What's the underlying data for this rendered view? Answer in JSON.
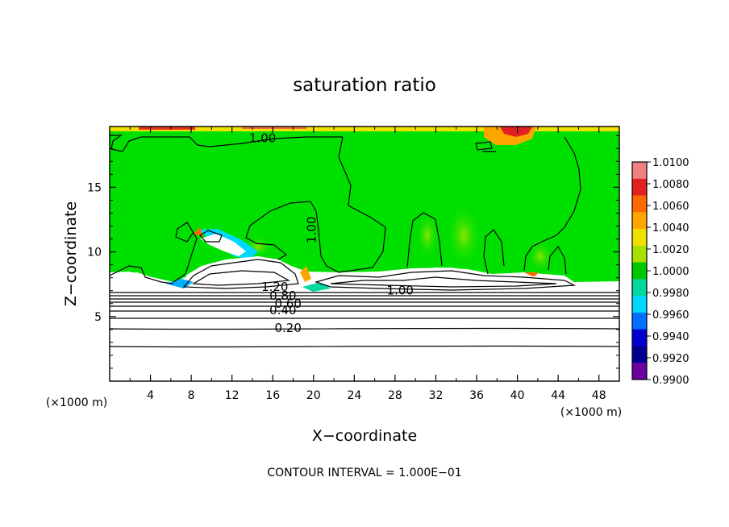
{
  "chart_data": {
    "type": "heatmap",
    "title": "saturation ratio",
    "xlabel": "X−coordinate",
    "ylabel": "Z−coordinate",
    "x_unit_left": "(×1000 m)",
    "x_unit_right": "(×1000 m)",
    "xlim": [
      0,
      50
    ],
    "ylim": [
      0,
      19.7
    ],
    "x_ticks": [
      4,
      8,
      12,
      16,
      20,
      24,
      28,
      32,
      36,
      40,
      44,
      48
    ],
    "y_ticks": [
      5,
      10,
      15
    ],
    "footer": "CONTOUR INTERVAL = 1.000E−01",
    "colorbar": {
      "min": 0.99,
      "max": 1.01,
      "labels": [
        "1.0100",
        "1.0080",
        "1.0060",
        "1.0040",
        "1.0020",
        "1.0000",
        "0.9980",
        "0.9960",
        "0.9940",
        "0.9920",
        "0.9900"
      ],
      "colors": [
        "#f08080",
        "#e32020",
        "#ff6a00",
        "#ffa500",
        "#f0e000",
        "#a8e000",
        "#00c800",
        "#00d8a0",
        "#00d8ff",
        "#0070ff",
        "#0000d0",
        "#000090",
        "#6a00a0"
      ]
    },
    "contour_labels": [
      {
        "text": "1.00",
        "x": 15.0,
        "z": 18.8
      },
      {
        "text": "1.00",
        "x": 19.8,
        "z": 11.7
      },
      {
        "text": "1.00",
        "x": 28.5,
        "z": 7.0
      },
      {
        "text": "1.20",
        "x": 16.2,
        "z": 7.3
      },
      {
        "text": "0.80",
        "x": 17.0,
        "z": 6.6
      },
      {
        "text": "0.60",
        "x": 17.5,
        "z": 6.0
      },
      {
        "text": "0.40",
        "x": 17.0,
        "z": 5.5
      },
      {
        "text": "0.20",
        "x": 17.5,
        "z": 4.1
      }
    ]
  }
}
